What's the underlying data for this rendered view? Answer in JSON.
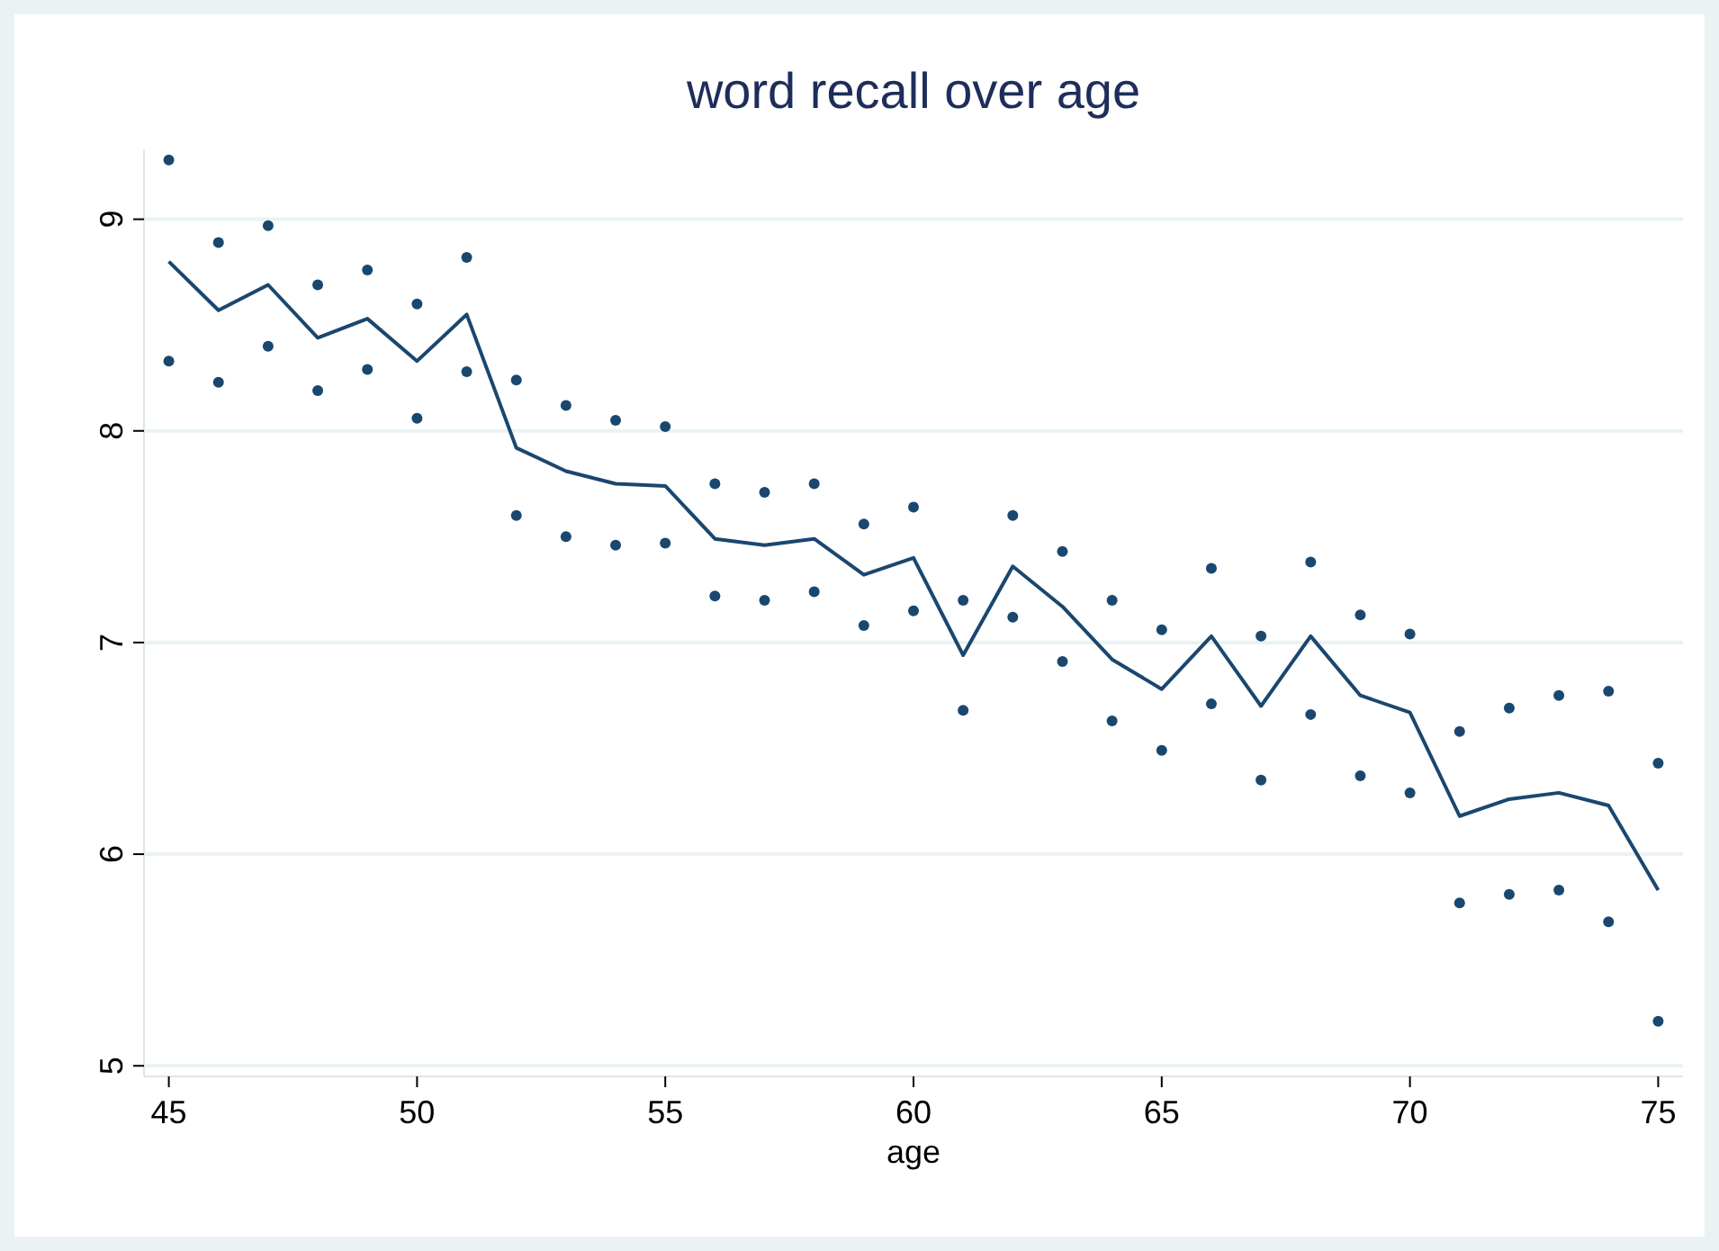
{
  "chart_data": {
    "type": "line",
    "title": "word recall over age",
    "xlabel": "age",
    "x": [
      45,
      46,
      47,
      48,
      49,
      50,
      51,
      52,
      53,
      54,
      55,
      56,
      57,
      58,
      59,
      60,
      61,
      62,
      63,
      64,
      65,
      66,
      67,
      68,
      69,
      70,
      71,
      72,
      73,
      74,
      75
    ],
    "series": [
      {
        "color": "#1a476f",
        "marker": "none",
        "values": [
          8.8,
          8.57,
          8.69,
          8.44,
          8.53,
          8.33,
          8.55,
          7.92,
          7.81,
          7.75,
          7.74,
          7.49,
          7.46,
          7.49,
          7.32,
          7.4,
          6.94,
          7.36,
          7.17,
          6.92,
          6.78,
          7.03,
          6.7,
          7.03,
          6.75,
          6.67,
          6.18,
          6.26,
          6.29,
          6.23,
          5.83
        ]
      },
      {
        "type": "scatter",
        "color": "#1a476f",
        "marker": "circle",
        "values": [
          9.28,
          8.89,
          8.97,
          8.69,
          8.76,
          8.6,
          8.82,
          8.24,
          8.12,
          8.05,
          8.02,
          7.75,
          7.71,
          7.75,
          7.56,
          7.64,
          7.2,
          7.6,
          7.43,
          7.2,
          7.06,
          7.35,
          7.03,
          7.38,
          7.13,
          7.04,
          6.58,
          6.69,
          6.75,
          6.77,
          6.43
        ]
      },
      {
        "type": "scatter",
        "color": "#1a476f",
        "marker": "circle",
        "values": [
          8.33,
          8.23,
          8.4,
          8.19,
          8.29,
          8.06,
          8.28,
          7.6,
          7.5,
          7.46,
          7.47,
          7.22,
          7.2,
          7.24,
          7.08,
          7.15,
          6.68,
          7.12,
          6.91,
          6.63,
          6.49,
          6.71,
          6.35,
          6.66,
          6.37,
          6.29,
          5.77,
          5.81,
          5.83,
          5.68,
          5.21
        ]
      }
    ],
    "xlim": [
      44.5,
      75.5
    ],
    "xticks": [
      45,
      50,
      55,
      60,
      65,
      70,
      75
    ],
    "ylim": [
      4.95,
      9.33
    ],
    "yticks": [
      5,
      6,
      7,
      8,
      9
    ],
    "grid": "y"
  }
}
